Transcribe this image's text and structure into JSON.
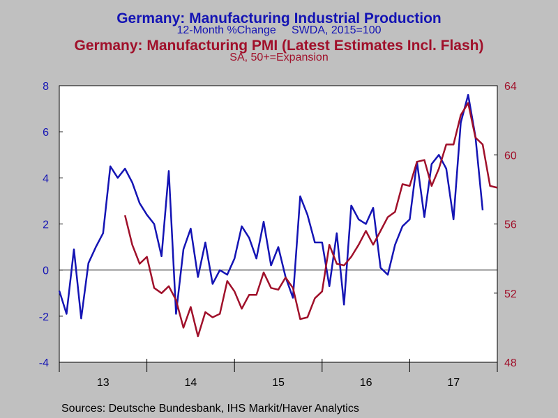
{
  "colors": {
    "background": "#c0c0c0",
    "plot_bg": "#ffffff",
    "series1": "#1414b4",
    "series2": "#a0102a",
    "axis": "#000000"
  },
  "titles": {
    "line1": "Germany: Manufacturing Industrial Production",
    "line2": "12-Month %Change     SWDA, 2015=100",
    "line3": "Germany: Manufacturing PMI (Latest Estimates Incl. Flash)",
    "line4": "SA, 50+=Expansion"
  },
  "source": "Sources:  Deutsche Bundesbank, IHS Markit/Haver Analytics",
  "chart_data": {
    "type": "line",
    "x_labels": [
      "13",
      "14",
      "15",
      "16",
      "17"
    ],
    "y_left": {
      "min": -4,
      "max": 8,
      "ticks": [
        -4,
        -2,
        0,
        2,
        4,
        6,
        8
      ],
      "tick_labels": [
        "-4",
        "-2",
        "0",
        "2",
        "4",
        "6",
        "8"
      ]
    },
    "y_right": {
      "min": 48,
      "max": 64,
      "ticks": [
        48,
        52,
        56,
        60,
        64
      ],
      "tick_labels": [
        "48",
        "52",
        "56",
        "60",
        "64"
      ]
    },
    "x_domain": [
      2013.0,
      2018.0
    ],
    "zero_line": 0,
    "series": [
      {
        "name": "Germany: Manufacturing Industrial Production",
        "axis": "left",
        "points": [
          [
            2013.0,
            -0.9
          ],
          [
            2013.083,
            -1.9
          ],
          [
            2013.167,
            0.9
          ],
          [
            2013.25,
            -2.1
          ],
          [
            2013.333,
            0.3
          ],
          [
            2013.417,
            1.0
          ],
          [
            2013.5,
            1.6
          ],
          [
            2013.583,
            4.5
          ],
          [
            2013.667,
            4.0
          ],
          [
            2013.75,
            4.4
          ],
          [
            2013.833,
            3.8
          ],
          [
            2013.917,
            2.9
          ],
          [
            2014.0,
            2.4
          ],
          [
            2014.083,
            2.0
          ],
          [
            2014.167,
            0.6
          ],
          [
            2014.25,
            4.3
          ],
          [
            2014.333,
            -1.9
          ],
          [
            2014.417,
            0.9
          ],
          [
            2014.5,
            1.8
          ],
          [
            2014.583,
            -0.3
          ],
          [
            2014.667,
            1.2
          ],
          [
            2014.75,
            -0.6
          ],
          [
            2014.833,
            0.0
          ],
          [
            2014.917,
            -0.2
          ],
          [
            2015.0,
            0.5
          ],
          [
            2015.083,
            1.9
          ],
          [
            2015.167,
            1.4
          ],
          [
            2015.25,
            0.5
          ],
          [
            2015.333,
            2.1
          ],
          [
            2015.417,
            0.2
          ],
          [
            2015.5,
            1.0
          ],
          [
            2015.583,
            -0.3
          ],
          [
            2015.667,
            -1.2
          ],
          [
            2015.75,
            3.2
          ],
          [
            2015.833,
            2.4
          ],
          [
            2015.917,
            1.2
          ],
          [
            2016.0,
            1.2
          ],
          [
            2016.083,
            -0.7
          ],
          [
            2016.167,
            1.6
          ],
          [
            2016.25,
            -1.5
          ],
          [
            2016.333,
            2.8
          ],
          [
            2016.417,
            2.2
          ],
          [
            2016.5,
            2.0
          ],
          [
            2016.583,
            2.7
          ],
          [
            2016.667,
            0.1
          ],
          [
            2016.75,
            -0.2
          ],
          [
            2016.833,
            1.1
          ],
          [
            2016.917,
            1.9
          ],
          [
            2017.0,
            2.2
          ],
          [
            2017.083,
            4.7
          ],
          [
            2017.167,
            2.3
          ],
          [
            2017.25,
            4.6
          ],
          [
            2017.333,
            5.0
          ],
          [
            2017.417,
            4.4
          ],
          [
            2017.5,
            2.2
          ],
          [
            2017.583,
            6.4
          ],
          [
            2017.667,
            7.6
          ],
          [
            2017.75,
            5.8
          ],
          [
            2017.833,
            2.6
          ]
        ]
      },
      {
        "name": "Germany: Manufacturing PMI (Latest Estimates Incl. Flash)",
        "axis": "right",
        "points": [
          [
            2013.75,
            56.5
          ],
          [
            2013.833,
            54.8
          ],
          [
            2013.917,
            53.7
          ],
          [
            2014.0,
            54.1
          ],
          [
            2014.083,
            52.3
          ],
          [
            2014.167,
            52.0
          ],
          [
            2014.25,
            52.4
          ],
          [
            2014.333,
            51.6
          ],
          [
            2014.417,
            50.0
          ],
          [
            2014.5,
            51.2
          ],
          [
            2014.583,
            49.5
          ],
          [
            2014.667,
            50.9
          ],
          [
            2014.75,
            50.6
          ],
          [
            2014.833,
            50.8
          ],
          [
            2014.917,
            52.7
          ],
          [
            2015.0,
            52.1
          ],
          [
            2015.083,
            51.1
          ],
          [
            2015.167,
            51.9
          ],
          [
            2015.25,
            51.9
          ],
          [
            2015.333,
            53.2
          ],
          [
            2015.417,
            52.3
          ],
          [
            2015.5,
            52.2
          ],
          [
            2015.583,
            52.9
          ],
          [
            2015.667,
            52.3
          ],
          [
            2015.75,
            50.5
          ],
          [
            2015.833,
            50.6
          ],
          [
            2015.917,
            51.7
          ],
          [
            2016.0,
            52.1
          ],
          [
            2016.083,
            54.8
          ],
          [
            2016.167,
            53.7
          ],
          [
            2016.25,
            53.6
          ],
          [
            2016.333,
            54.1
          ],
          [
            2016.417,
            54.8
          ],
          [
            2016.5,
            55.6
          ],
          [
            2016.583,
            54.8
          ],
          [
            2016.667,
            55.6
          ],
          [
            2016.75,
            56.4
          ],
          [
            2016.833,
            56.7
          ],
          [
            2016.917,
            58.3
          ],
          [
            2017.0,
            58.2
          ],
          [
            2017.083,
            59.6
          ],
          [
            2017.167,
            59.7
          ],
          [
            2017.25,
            58.2
          ],
          [
            2017.333,
            59.2
          ],
          [
            2017.417,
            60.6
          ],
          [
            2017.5,
            60.6
          ],
          [
            2017.583,
            62.3
          ],
          [
            2017.667,
            63.0
          ],
          [
            2017.75,
            61.0
          ],
          [
            2017.833,
            60.6
          ],
          [
            2017.917,
            58.2
          ],
          [
            2018.0,
            58.1
          ]
        ]
      }
    ]
  }
}
